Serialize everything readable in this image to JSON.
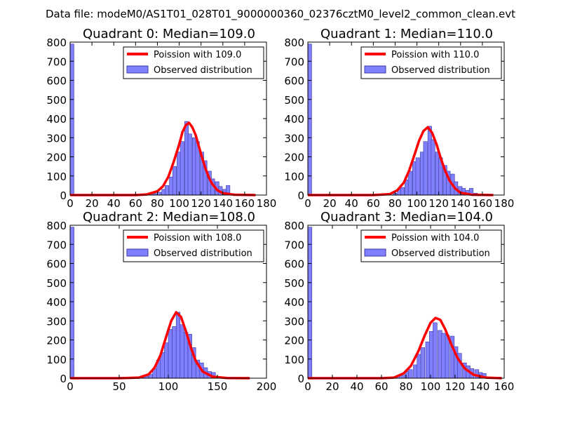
{
  "figure_title": "Data file: modeM0/AS1T01_028T01_9000000360_02376cztM0_level2_common_clean.evt",
  "colors": {
    "bar_fill": "#8080ff",
    "bar_edge": "#3a3aa0",
    "curve": "#ff0000",
    "axes": "#000000"
  },
  "chart_data": [
    {
      "type": "bar",
      "title": "Quadrant 0: Median=109.0",
      "xlim": [
        0,
        180
      ],
      "ylim": [
        0,
        800
      ],
      "xticks": [
        0,
        20,
        40,
        60,
        80,
        100,
        120,
        140,
        160,
        180
      ],
      "yticks": [
        0,
        100,
        200,
        300,
        400,
        500,
        600,
        700,
        800
      ],
      "bin_width": 3.5,
      "legend": {
        "curve_label": "Poission with 109.0",
        "bar_label": "Observed distribution",
        "position": "upper right"
      },
      "bins": [
        [
          0,
          790
        ],
        [
          66,
          3
        ],
        [
          73,
          5
        ],
        [
          77,
          8
        ],
        [
          80,
          15
        ],
        [
          84,
          30
        ],
        [
          87,
          50
        ],
        [
          91,
          95
        ],
        [
          94,
          150
        ],
        [
          98,
          225
        ],
        [
          101,
          280
        ],
        [
          105,
          385
        ],
        [
          108,
          320
        ],
        [
          112,
          300
        ],
        [
          115,
          280
        ],
        [
          119,
          225
        ],
        [
          122,
          180
        ],
        [
          126,
          125
        ],
        [
          129,
          85
        ],
        [
          133,
          70
        ],
        [
          136,
          45
        ],
        [
          140,
          30
        ],
        [
          143,
          50
        ],
        [
          147,
          8
        ],
        [
          150,
          3
        ]
      ],
      "curve": {
        "x": [
          0,
          60,
          70,
          80,
          85,
          90,
          95,
          100,
          103,
          106,
          109,
          112,
          115,
          118,
          121,
          124,
          127,
          130,
          135,
          140,
          150,
          170
        ],
        "y": [
          0,
          0,
          3,
          20,
          45,
          95,
          175,
          265,
          330,
          365,
          378,
          355,
          315,
          255,
          195,
          140,
          95,
          60,
          25,
          10,
          2,
          0
        ]
      }
    },
    {
      "type": "bar",
      "title": "Quadrant 1: Median=110.0",
      "xlim": [
        0,
        180
      ],
      "ylim": [
        0,
        800
      ],
      "xticks": [
        0,
        20,
        40,
        60,
        80,
        100,
        120,
        140,
        160,
        180
      ],
      "yticks": [
        0,
        100,
        200,
        300,
        400,
        500,
        600,
        700,
        800
      ],
      "bin_width": 3.5,
      "legend": {
        "curve_label": "Poission with 110.0",
        "bar_label": "Observed distribution",
        "position": "upper right"
      },
      "bins": [
        [
          0,
          790
        ],
        [
          71,
          3
        ],
        [
          78,
          10
        ],
        [
          82,
          30
        ],
        [
          85,
          40
        ],
        [
          89,
          80
        ],
        [
          92,
          125
        ],
        [
          96,
          175
        ],
        [
          99,
          195
        ],
        [
          103,
          225
        ],
        [
          106,
          280
        ],
        [
          110,
          360
        ],
        [
          113,
          290
        ],
        [
          117,
          225
        ],
        [
          120,
          195
        ],
        [
          124,
          155
        ],
        [
          127,
          125
        ],
        [
          131,
          110
        ],
        [
          134,
          70
        ],
        [
          138,
          45
        ],
        [
          141,
          35
        ],
        [
          145,
          25
        ],
        [
          148,
          35
        ],
        [
          152,
          10
        ],
        [
          155,
          3
        ]
      ],
      "curve": {
        "x": [
          0,
          60,
          75,
          82,
          88,
          93,
          98,
          102,
          106,
          110,
          114,
          118,
          122,
          126,
          130,
          135,
          140,
          150,
          170
        ],
        "y": [
          0,
          0,
          5,
          25,
          65,
          130,
          215,
          285,
          335,
          355,
          325,
          265,
          190,
          125,
          75,
          35,
          12,
          2,
          0
        ]
      }
    },
    {
      "type": "bar",
      "title": "Quadrant 2: Median=108.0",
      "xlim": [
        0,
        200
      ],
      "ylim": [
        0,
        800
      ],
      "xticks": [
        0,
        50,
        100,
        150,
        200
      ],
      "yticks": [
        0,
        100,
        200,
        300,
        400,
        500,
        600,
        700,
        800
      ],
      "bin_width": 4,
      "legend": {
        "curve_label": "Poission with 108.0",
        "bar_label": "Observed distribution",
        "position": "upper right"
      },
      "bins": [
        [
          0,
          790
        ],
        [
          72,
          3
        ],
        [
          76,
          10
        ],
        [
          80,
          20
        ],
        [
          84,
          50
        ],
        [
          88,
          95
        ],
        [
          92,
          135
        ],
        [
          96,
          185
        ],
        [
          100,
          255
        ],
        [
          104,
          270
        ],
        [
          108,
          345
        ],
        [
          112,
          280
        ],
        [
          116,
          240
        ],
        [
          120,
          230
        ],
        [
          124,
          160
        ],
        [
          128,
          95
        ],
        [
          132,
          80
        ],
        [
          136,
          55
        ],
        [
          140,
          35
        ],
        [
          144,
          30
        ],
        [
          148,
          5
        ]
      ],
      "curve": {
        "x": [
          0,
          50,
          70,
          80,
          86,
          92,
          98,
          103,
          108,
          113,
          118,
          123,
          128,
          135,
          145,
          160,
          183
        ],
        "y": [
          0,
          0,
          3,
          20,
          55,
          120,
          220,
          300,
          345,
          320,
          245,
          160,
          90,
          35,
          8,
          1,
          0
        ]
      }
    },
    {
      "type": "bar",
      "title": "Quadrant 3: Median=104.0",
      "xlim": [
        0,
        160
      ],
      "ylim": [
        0,
        800
      ],
      "xticks": [
        0,
        20,
        40,
        60,
        80,
        100,
        120,
        140,
        160
      ],
      "yticks": [
        0,
        100,
        200,
        300,
        400,
        500,
        600,
        700,
        800
      ],
      "bin_width": 3.3,
      "legend": {
        "curve_label": "Poission with 104.0",
        "bar_label": "Observed distribution",
        "position": "upper right"
      },
      "bins": [
        [
          0,
          790
        ],
        [
          69,
          3
        ],
        [
          72,
          10
        ],
        [
          76,
          15
        ],
        [
          79,
          35
        ],
        [
          82,
          45
        ],
        [
          86,
          70
        ],
        [
          89,
          125
        ],
        [
          92,
          160
        ],
        [
          96,
          190
        ],
        [
          99,
          245
        ],
        [
          102,
          290
        ],
        [
          106,
          250
        ],
        [
          109,
          235
        ],
        [
          112,
          225
        ],
        [
          116,
          220
        ],
        [
          119,
          165
        ],
        [
          122,
          130
        ],
        [
          126,
          80
        ],
        [
          129,
          65
        ],
        [
          132,
          50
        ],
        [
          136,
          45
        ],
        [
          139,
          30
        ],
        [
          142,
          25
        ],
        [
          146,
          5
        ]
      ],
      "curve": {
        "x": [
          0,
          60,
          70,
          78,
          84,
          90,
          95,
          100,
          104,
          108,
          112,
          117,
          122,
          128,
          135,
          145,
          158
        ],
        "y": [
          0,
          0,
          3,
          25,
          65,
          140,
          220,
          290,
          315,
          305,
          255,
          175,
          105,
          50,
          18,
          3,
          0
        ]
      }
    }
  ]
}
